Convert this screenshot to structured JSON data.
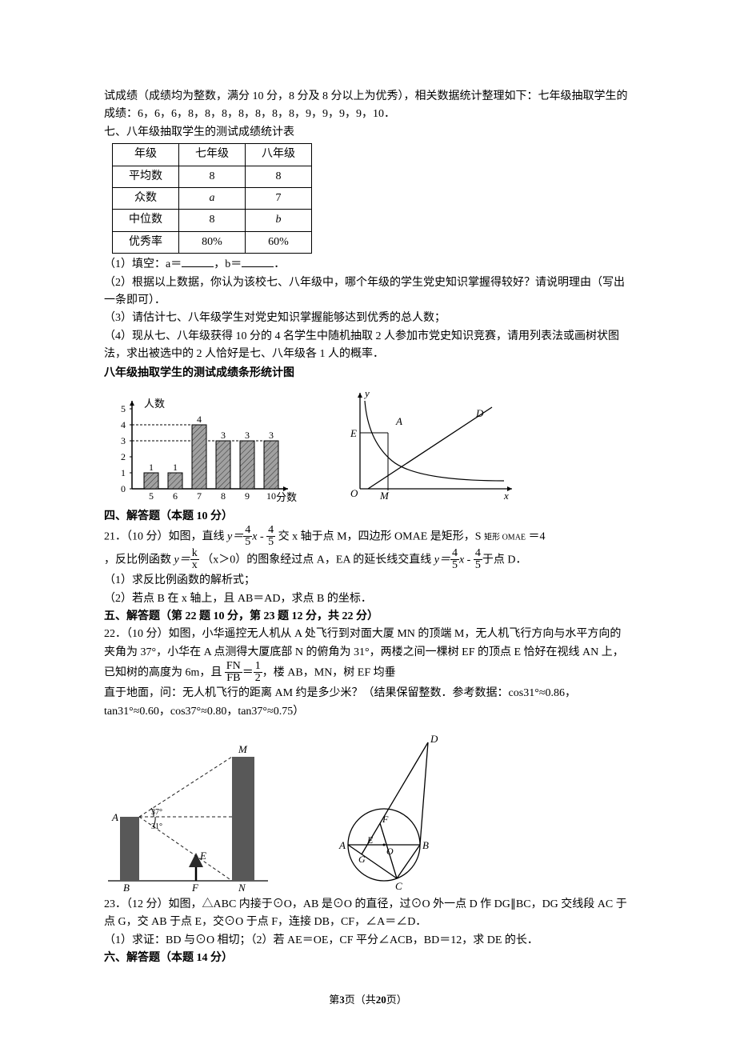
{
  "intro": {
    "line1": "试成绩（成绩均为整数，满分 10 分，8 分及 8 分以上为优秀），相关数据统计整理如下：七年级抽取学生的成绩：6，6，6，8，8，8，8，8，8，8，9，9，9，9，10．",
    "line2": "七、八年级抽取学生的测试成绩统计表"
  },
  "table": {
    "rows": [
      [
        "年级",
        "七年级",
        "八年级"
      ],
      [
        "平均数",
        "8",
        "8"
      ],
      [
        "众数",
        "a",
        "7"
      ],
      [
        "中位数",
        "8",
        "b"
      ],
      [
        "优秀率",
        "80%",
        "60%"
      ]
    ]
  },
  "q_parts": {
    "p1_a": "（1）填空：a＝",
    "p1_b": "，b＝",
    "p1_c": "．",
    "p2": "（2）根据以上数据，你认为该校七、八年级中，哪个年级的学生党史知识掌握得较好？请说明理由（写出一条即可）．",
    "p3": "（3）请估计七、八年级学生对党史知识掌握能够达到优秀的总人数；",
    "p4": "（4）现从七、八年级获得 10 分的 4 名学生中随机抽取 2 人参加市党史知识竞赛，请用列表法或画树状图法，求出被选中的 2 人恰好是七、八年级各 1 人的概率．"
  },
  "bar_chart": {
    "title": "八年级抽取学生的测试成绩条形统计图",
    "y_label": "人数",
    "x_label": "分数",
    "y_max_line": 5,
    "x_vals": [
      "5",
      "6",
      "7",
      "8",
      "9",
      "10"
    ],
    "bars": [
      1,
      1,
      4,
      3,
      3,
      3
    ],
    "colors": {
      "bar_fill": "#888888",
      "bar_hatch": "#333333",
      "axis": "#000000",
      "grid": "#000000"
    }
  },
  "section4": "四、解答题（本题 10 分）",
  "q21": {
    "head": "21．（10 分）如图，直线",
    "eq_label_a": "交 x 轴于点 M，四边形 OMAE 是矩形，S",
    "sub1": "矩形 OMAE",
    "eq_label_b": "＝4",
    "line2a": "，反比例函数",
    "line2b": "（x＞0）的图象经过点 A，EA 的延长线交直线",
    "line2c": "于点 D．",
    "p1": "（1）求反比例函数的解析式；",
    "p2": "（2）若点 B 在 x 轴上，且 AB＝AD，求点 B 的坐标．",
    "frac45_num": "4",
    "frac45_den": "5",
    "frac_k_num": "k",
    "frac_k_den": "x"
  },
  "graph2": {
    "labels": {
      "O": "O",
      "M": "M",
      "E": "E",
      "A": "A",
      "D": "D",
      "x": "x",
      "y": "y"
    },
    "colors": {
      "stroke": "#000000"
    }
  },
  "section5": "五、解答题（第 22 题 10 分，第 23 题 12 分，共 22 分）",
  "q22": {
    "text1": "22．（10 分）如图，小华遥控无人机从 A 处飞行到对面大厦 MN 的顶端 M，无人机飞行方向与水平方向的夹角为 37°，小华在 A 点测得大厦底部 N 的俯角为 31°，两楼之间一棵树 EF 的顶点 E 恰好在视线 AN 上，已知树的高度为 6m，且",
    "text2": "，楼 AB，MN，树 EF 均垂",
    "text3": "直于地面，问：无人机飞行的距离 AM 约是多少米？（结果保留整数．参考数据：cos31°≈0.86，tan31°≈0.60，cos37°≈0.80，tan37°≈0.75）",
    "frac_fn_num": "FN",
    "frac_fn_den": "FB",
    "frac_12_num": "1",
    "frac_12_den": "2"
  },
  "q22_fig": {
    "labels": {
      "A": "A",
      "B": "B",
      "M": "M",
      "N": "N",
      "E": "E",
      "F": "F",
      "ang1": "37°",
      "ang2": "31°"
    },
    "colors": {
      "building": "#585858",
      "tree": "#333333",
      "dash": "#1c1c1c"
    }
  },
  "q23_fig": {
    "labels": {
      "A": "A",
      "B": "B",
      "C": "C",
      "D": "D",
      "E": "E",
      "F": "F",
      "G": "G",
      "O": "O"
    }
  },
  "q23": {
    "text": "23．（12 分）如图，△ABC 内接于⊙O，AB 是⊙O 的直径，过⊙O 外一点 D 作 DG∥BC，DG 交线段 AC 于点 G，交 AB 于点 E，交⊙O 于点 F，连接 DB，CF，∠A＝∠D．",
    "p1": "（1）求证：BD 与⊙O 相切；（2）若 AE＝OE，CF 平分∠ACB，BD＝12，求 DE 的长．"
  },
  "section6": "六、解答题（本题 14 分）",
  "footer": {
    "a": "第",
    "b": "3",
    "c": "页（共",
    "d": "20",
    "e": "页）"
  }
}
